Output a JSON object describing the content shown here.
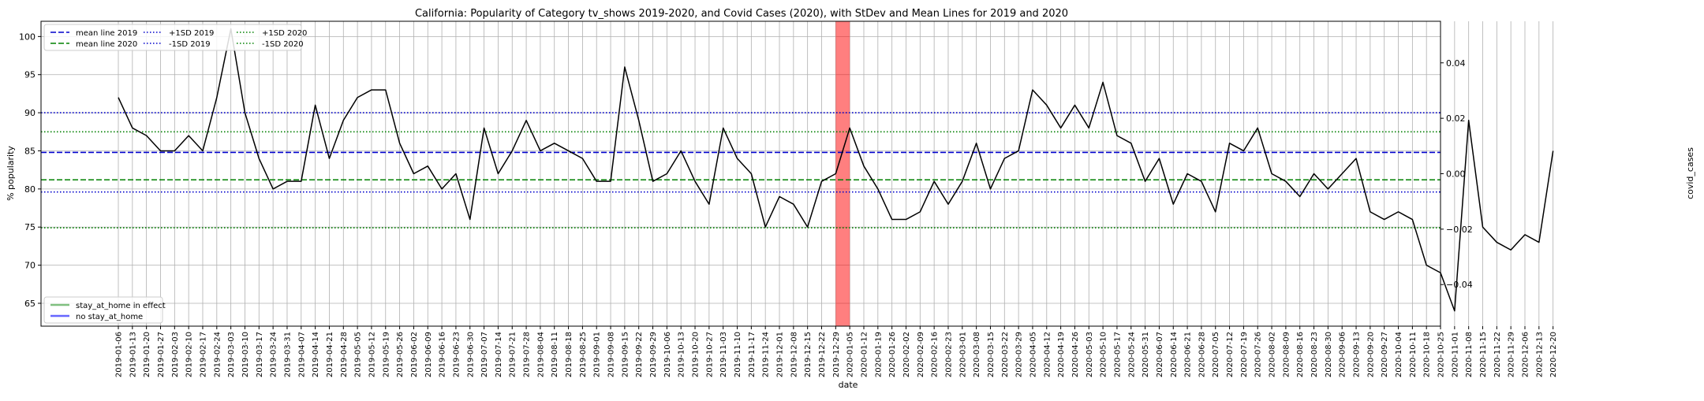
{
  "chart_data": {
    "type": "line",
    "title": "California: Popularity of Category tv_shows 2019-2020, and Covid Cases (2020), with StDev and Mean Lines for 2019 and 2020",
    "xlabel": "date",
    "ylabel": "% popularity",
    "y2label": "covid_cases",
    "ylim": [
      62,
      102
    ],
    "y_ticks": [
      65,
      70,
      75,
      80,
      85,
      90,
      95,
      100
    ],
    "y2lim": [
      -0.055,
      0.055
    ],
    "y2_ticks": [
      -0.04,
      -0.02,
      0.0,
      0.02,
      0.04
    ],
    "y2_tick_labels": [
      "−0.04",
      "−0.02",
      "0.00",
      "0.02",
      "0.04"
    ],
    "grid": true,
    "x": [
      "2019-01-06",
      "2019-01-13",
      "2019-01-20",
      "2019-01-27",
      "2019-02-03",
      "2019-02-10",
      "2019-02-17",
      "2019-02-24",
      "2019-03-03",
      "2019-03-10",
      "2019-03-17",
      "2019-03-24",
      "2019-03-31",
      "2019-04-07",
      "2019-04-14",
      "2019-04-21",
      "2019-04-28",
      "2019-05-05",
      "2019-05-12",
      "2019-05-19",
      "2019-05-26",
      "2019-06-02",
      "2019-06-09",
      "2019-06-16",
      "2019-06-23",
      "2019-06-30",
      "2019-07-07",
      "2019-07-14",
      "2019-07-21",
      "2019-07-28",
      "2019-08-04",
      "2019-08-11",
      "2019-08-18",
      "2019-08-25",
      "2019-09-01",
      "2019-09-08",
      "2019-09-15",
      "2019-09-22",
      "2019-09-29",
      "2019-10-06",
      "2019-10-13",
      "2019-10-20",
      "2019-10-27",
      "2019-11-03",
      "2019-11-10",
      "2019-11-17",
      "2019-11-24",
      "2019-12-01",
      "2019-12-08",
      "2019-12-15",
      "2019-12-22",
      "2019-12-29",
      "2020-01-05",
      "2020-01-12",
      "2020-01-19",
      "2020-01-26",
      "2020-02-02",
      "2020-02-09",
      "2020-02-16",
      "2020-02-23",
      "2020-03-01",
      "2020-03-08",
      "2020-03-15",
      "2020-03-22",
      "2020-03-29",
      "2020-04-05",
      "2020-04-12",
      "2020-04-19",
      "2020-04-26",
      "2020-05-03",
      "2020-05-10",
      "2020-05-17",
      "2020-05-24",
      "2020-05-31",
      "2020-06-07",
      "2020-06-14",
      "2020-06-21",
      "2020-06-28",
      "2020-07-05",
      "2020-07-12",
      "2020-07-19",
      "2020-07-26",
      "2020-08-02",
      "2020-08-09",
      "2020-08-16",
      "2020-08-23",
      "2020-08-30",
      "2020-09-06",
      "2020-09-13",
      "2020-09-20",
      "2020-09-27",
      "2020-10-04",
      "2020-10-11",
      "2020-10-18",
      "2020-10-25",
      "2020-11-01",
      "2020-11-08",
      "2020-11-15",
      "2020-11-22",
      "2020-11-29",
      "2020-12-06",
      "2020-12-13",
      "2020-12-20"
    ],
    "series": [
      {
        "values": [
          92,
          88,
          87,
          85,
          85,
          87,
          85,
          92,
          101,
          90,
          84,
          80,
          81,
          81,
          91,
          84,
          89,
          92,
          93,
          93,
          86,
          82,
          83,
          80,
          82,
          76,
          88,
          82,
          85,
          89,
          85,
          86,
          85,
          84,
          81,
          81,
          96,
          89,
          81,
          82,
          85,
          81,
          78,
          88,
          84,
          82,
          75,
          79,
          78,
          75,
          81,
          82,
          88,
          83,
          80,
          76,
          76,
          77,
          81,
          78,
          81,
          86,
          80,
          84,
          85,
          93,
          91,
          88,
          91,
          88,
          94,
          87,
          86,
          81,
          84,
          78,
          82,
          81,
          77,
          86,
          85,
          88,
          82,
          81,
          79,
          82,
          80,
          82,
          84,
          77,
          76,
          77,
          76,
          70,
          69,
          64,
          89,
          75,
          73,
          72,
          74,
          73,
          85
        ],
        "color": "#000000"
      }
    ],
    "hlines": [
      {
        "name": "mean line 2019",
        "value": 84.8,
        "color": "#0000cc",
        "style": "dashed"
      },
      {
        "name": "mean line 2020",
        "value": 81.2,
        "color": "#008000",
        "style": "dashed"
      },
      {
        "name": "+1SD 2019",
        "value": 90.0,
        "color": "#0000cc",
        "style": "dotted"
      },
      {
        "name": "-1SD 2019",
        "value": 79.6,
        "color": "#0000cc",
        "style": "dotted"
      },
      {
        "name": "+1SD 2020",
        "value": 87.5,
        "color": "#008000",
        "style": "dotted"
      },
      {
        "name": "-1SD 2020",
        "value": 74.9,
        "color": "#008000",
        "style": "dotted"
      }
    ],
    "highlight_span": {
      "from": "2019-12-29",
      "to": "2020-01-05",
      "color": "#ff0000",
      "opacity": 0.5
    },
    "legend_top": {
      "placement": "top-left",
      "entries": [
        {
          "label": "mean line 2019",
          "color": "#0000cc",
          "style": "dashed"
        },
        {
          "label": "mean line 2020",
          "color": "#008000",
          "style": "dashed"
        },
        {
          "label": "+1SD 2019",
          "color": "#0000cc",
          "style": "dotted"
        },
        {
          "label": "-1SD 2019",
          "color": "#0000cc",
          "style": "dotted"
        },
        {
          "label": "+1SD 2020",
          "color": "#008000",
          "style": "dotted"
        },
        {
          "label": "-1SD 2020",
          "color": "#008000",
          "style": "dotted"
        }
      ]
    },
    "legend_bottom": {
      "placement": "bottom-left",
      "entries": [
        {
          "label": "stay_at_home in effect",
          "color": "#008000",
          "opacity": 0.5,
          "style": "solid"
        },
        {
          "label": "no stay_at_home",
          "color": "#0000ff",
          "opacity": 0.6,
          "style": "solid"
        }
      ]
    }
  }
}
